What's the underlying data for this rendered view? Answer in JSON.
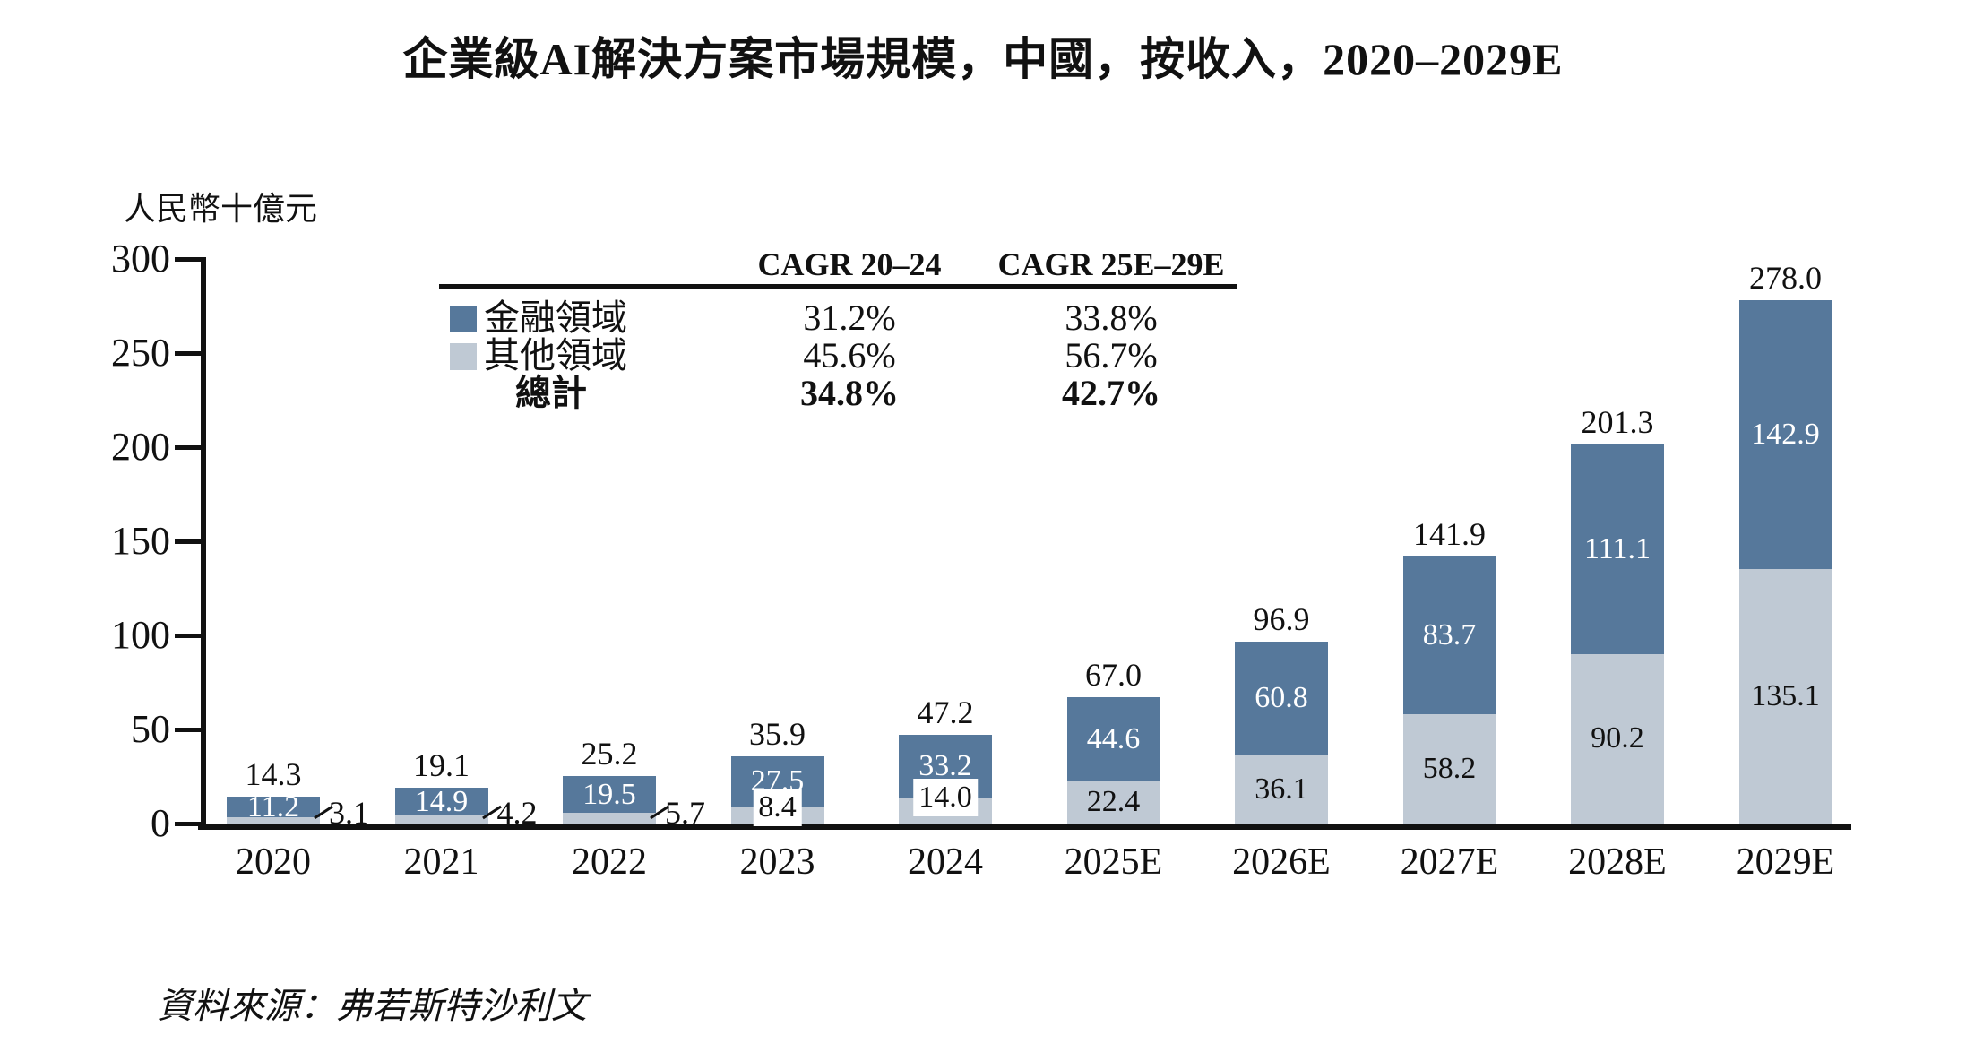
{
  "title": "企業級AI解決方案市場規模，中國，按收入，2020–2029E",
  "unit_label": "人民幣十億元",
  "source": "資料來源：弗若斯特沙利文",
  "colors": {
    "finance_blue": "#56789B",
    "others_gray": "#BFC9D4",
    "axis_black": "#111111"
  },
  "legend_table": {
    "col_headers": [
      "CAGR 20–24",
      "CAGR 25E–29E"
    ],
    "rows": [
      {
        "label": "金融領域",
        "swatch": "finance",
        "bold": false,
        "values": [
          "31.2%",
          "33.8%"
        ]
      },
      {
        "label": "其他領域",
        "swatch": "others",
        "bold": false,
        "values": [
          "45.6%",
          "56.7%"
        ]
      },
      {
        "label": "總計",
        "swatch": null,
        "bold": true,
        "values": [
          "34.8%",
          "42.7%"
        ]
      }
    ]
  },
  "chart_data": {
    "type": "bar",
    "stacked": true,
    "title": "企業級AI解決方案市場規模，中國，按收入，2020–2029E",
    "ylabel": "人民幣十億元",
    "ylim": [
      0,
      300
    ],
    "yticks": [
      0,
      50,
      100,
      150,
      200,
      250,
      300
    ],
    "grid": false,
    "legend_position": "upper-left-table",
    "categories": [
      "2020",
      "2021",
      "2022",
      "2023",
      "2024",
      "2025E",
      "2026E",
      "2027E",
      "2028E",
      "2029E"
    ],
    "series": [
      {
        "name": "金融領域",
        "color": "#56789B",
        "values": [
          11.2,
          14.9,
          19.5,
          27.5,
          33.2,
          44.6,
          60.8,
          83.7,
          111.1,
          142.9
        ]
      },
      {
        "name": "其他領域",
        "color": "#BFC9D4",
        "values": [
          3.1,
          4.2,
          5.7,
          8.4,
          14.0,
          22.4,
          36.1,
          58.2,
          90.2,
          135.1
        ]
      }
    ],
    "totals": [
      14.3,
      19.1,
      25.2,
      35.9,
      47.2,
      67.0,
      96.9,
      141.9,
      201.3,
      278.0
    ]
  }
}
